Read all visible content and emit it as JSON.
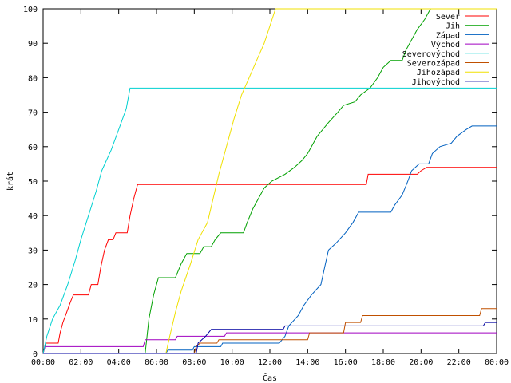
{
  "chart_data": {
    "type": "line",
    "xlabel": "Čas",
    "ylabel": "krát",
    "x_unit": "hour",
    "xlim": [
      0,
      24
    ],
    "ylim": [
      0,
      100
    ],
    "grid": false,
    "legend_position": "top-right",
    "x_tick_labels": [
      "00:00",
      "02:00",
      "04:00",
      "06:00",
      "08:00",
      "10:00",
      "12:00",
      "14:00",
      "16:00",
      "18:00",
      "20:00",
      "22:00",
      "00:00"
    ],
    "y_tick_values": [
      0,
      10,
      20,
      30,
      40,
      50,
      60,
      70,
      80,
      90,
      100
    ],
    "series": [
      {
        "name": "Sever",
        "color": "#ff0000",
        "points": [
          [
            0,
            0
          ],
          [
            0.15,
            3
          ],
          [
            0.8,
            3
          ],
          [
            0.9,
            6
          ],
          [
            1.05,
            9
          ],
          [
            1.25,
            12
          ],
          [
            1.45,
            15
          ],
          [
            1.6,
            17
          ],
          [
            2.4,
            17
          ],
          [
            2.55,
            20
          ],
          [
            2.9,
            20
          ],
          [
            3.05,
            25
          ],
          [
            3.25,
            30
          ],
          [
            3.45,
            33
          ],
          [
            3.7,
            33
          ],
          [
            3.85,
            35
          ],
          [
            4.45,
            35
          ],
          [
            4.6,
            40
          ],
          [
            4.8,
            45
          ],
          [
            5.0,
            49
          ],
          [
            17.1,
            49
          ],
          [
            17.2,
            52
          ],
          [
            19.8,
            52
          ],
          [
            20.0,
            53
          ],
          [
            20.3,
            54
          ],
          [
            24,
            54
          ]
        ]
      },
      {
        "name": "Jih",
        "color": "#00a000",
        "points": [
          [
            0,
            0
          ],
          [
            5.4,
            0
          ],
          [
            5.6,
            10
          ],
          [
            5.85,
            17
          ],
          [
            6.1,
            22
          ],
          [
            7.0,
            22
          ],
          [
            7.3,
            26
          ],
          [
            7.6,
            29
          ],
          [
            8.3,
            29
          ],
          [
            8.5,
            31
          ],
          [
            8.9,
            31
          ],
          [
            9.1,
            33
          ],
          [
            9.4,
            35
          ],
          [
            10.6,
            35
          ],
          [
            10.8,
            38
          ],
          [
            11.1,
            42
          ],
          [
            11.4,
            45
          ],
          [
            11.7,
            48
          ],
          [
            12.1,
            50
          ],
          [
            12.8,
            52
          ],
          [
            13.3,
            54
          ],
          [
            13.7,
            56
          ],
          [
            14.0,
            58
          ],
          [
            14.2,
            60
          ],
          [
            14.5,
            63
          ],
          [
            14.8,
            65
          ],
          [
            15.1,
            67
          ],
          [
            15.6,
            70
          ],
          [
            15.9,
            72
          ],
          [
            16.5,
            73
          ],
          [
            16.8,
            75
          ],
          [
            17.3,
            77
          ],
          [
            17.7,
            80
          ],
          [
            18.0,
            83
          ],
          [
            18.4,
            85
          ],
          [
            19.0,
            85
          ],
          [
            19.2,
            88
          ],
          [
            19.5,
            91
          ],
          [
            19.8,
            94
          ],
          [
            20.2,
            97
          ],
          [
            20.5,
            100
          ],
          [
            24,
            100
          ]
        ]
      },
      {
        "name": "Západ",
        "color": "#0060c0",
        "points": [
          [
            0,
            0
          ],
          [
            6.5,
            0
          ],
          [
            6.6,
            1
          ],
          [
            7.9,
            1
          ],
          [
            8.0,
            2
          ],
          [
            9.4,
            2
          ],
          [
            9.5,
            3
          ],
          [
            12.5,
            3
          ],
          [
            12.8,
            5
          ],
          [
            13.0,
            8
          ],
          [
            13.5,
            11
          ],
          [
            13.8,
            14
          ],
          [
            14.2,
            17
          ],
          [
            14.7,
            20
          ],
          [
            14.9,
            25
          ],
          [
            15.1,
            30
          ],
          [
            15.5,
            32
          ],
          [
            16.0,
            35
          ],
          [
            16.4,
            38
          ],
          [
            16.7,
            41
          ],
          [
            18.4,
            41
          ],
          [
            18.6,
            43
          ],
          [
            19.0,
            46
          ],
          [
            19.3,
            50
          ],
          [
            19.5,
            53
          ],
          [
            19.9,
            55
          ],
          [
            20.4,
            55
          ],
          [
            20.6,
            58
          ],
          [
            21.0,
            60
          ],
          [
            21.6,
            61
          ],
          [
            21.9,
            63
          ],
          [
            22.4,
            65
          ],
          [
            22.7,
            66
          ],
          [
            24,
            66
          ]
        ]
      },
      {
        "name": "Východ",
        "color": "#a000c0",
        "points": [
          [
            0,
            0
          ],
          [
            0.1,
            2
          ],
          [
            5.3,
            2
          ],
          [
            5.4,
            4
          ],
          [
            7.0,
            4
          ],
          [
            7.1,
            5
          ],
          [
            9.6,
            5
          ],
          [
            9.7,
            6
          ],
          [
            24,
            6
          ]
        ]
      },
      {
        "name": "Severovýchod",
        "color": "#00d0d0",
        "points": [
          [
            0,
            0
          ],
          [
            0.2,
            5
          ],
          [
            0.5,
            10
          ],
          [
            0.9,
            14
          ],
          [
            1.3,
            20
          ],
          [
            1.7,
            27
          ],
          [
            2.0,
            33
          ],
          [
            2.4,
            40
          ],
          [
            2.8,
            47
          ],
          [
            3.1,
            53
          ],
          [
            3.6,
            59
          ],
          [
            4.0,
            65
          ],
          [
            4.4,
            71
          ],
          [
            4.6,
            77
          ],
          [
            24,
            77
          ]
        ]
      },
      {
        "name": "Severozápad",
        "color": "#c05000",
        "points": [
          [
            0,
            0
          ],
          [
            8.0,
            0
          ],
          [
            8.1,
            2
          ],
          [
            8.3,
            3
          ],
          [
            9.2,
            3
          ],
          [
            9.3,
            4
          ],
          [
            14.0,
            4
          ],
          [
            14.1,
            6
          ],
          [
            15.9,
            6
          ],
          [
            16.0,
            9
          ],
          [
            16.8,
            9
          ],
          [
            16.9,
            11
          ],
          [
            23.1,
            11
          ],
          [
            23.2,
            13
          ],
          [
            24,
            13
          ]
        ]
      },
      {
        "name": "Jihozápad",
        "color": "#f0e000",
        "points": [
          [
            0,
            0
          ],
          [
            6.5,
            0
          ],
          [
            6.7,
            5
          ],
          [
            7.0,
            12
          ],
          [
            7.3,
            18
          ],
          [
            7.8,
            26
          ],
          [
            8.2,
            33
          ],
          [
            8.7,
            38
          ],
          [
            9.0,
            45
          ],
          [
            9.3,
            52
          ],
          [
            9.7,
            60
          ],
          [
            10.1,
            68
          ],
          [
            10.5,
            75
          ],
          [
            10.9,
            80
          ],
          [
            11.3,
            85
          ],
          [
            11.7,
            90
          ],
          [
            12.0,
            95
          ],
          [
            12.3,
            100
          ],
          [
            24,
            100
          ]
        ]
      },
      {
        "name": "Jihovýchod",
        "color": "#0000a0",
        "points": [
          [
            0,
            0
          ],
          [
            8.1,
            0
          ],
          [
            8.2,
            3
          ],
          [
            8.6,
            5
          ],
          [
            8.9,
            7
          ],
          [
            12.7,
            7
          ],
          [
            12.8,
            8
          ],
          [
            23.3,
            8
          ],
          [
            23.4,
            9
          ],
          [
            24,
            9
          ]
        ]
      }
    ]
  }
}
